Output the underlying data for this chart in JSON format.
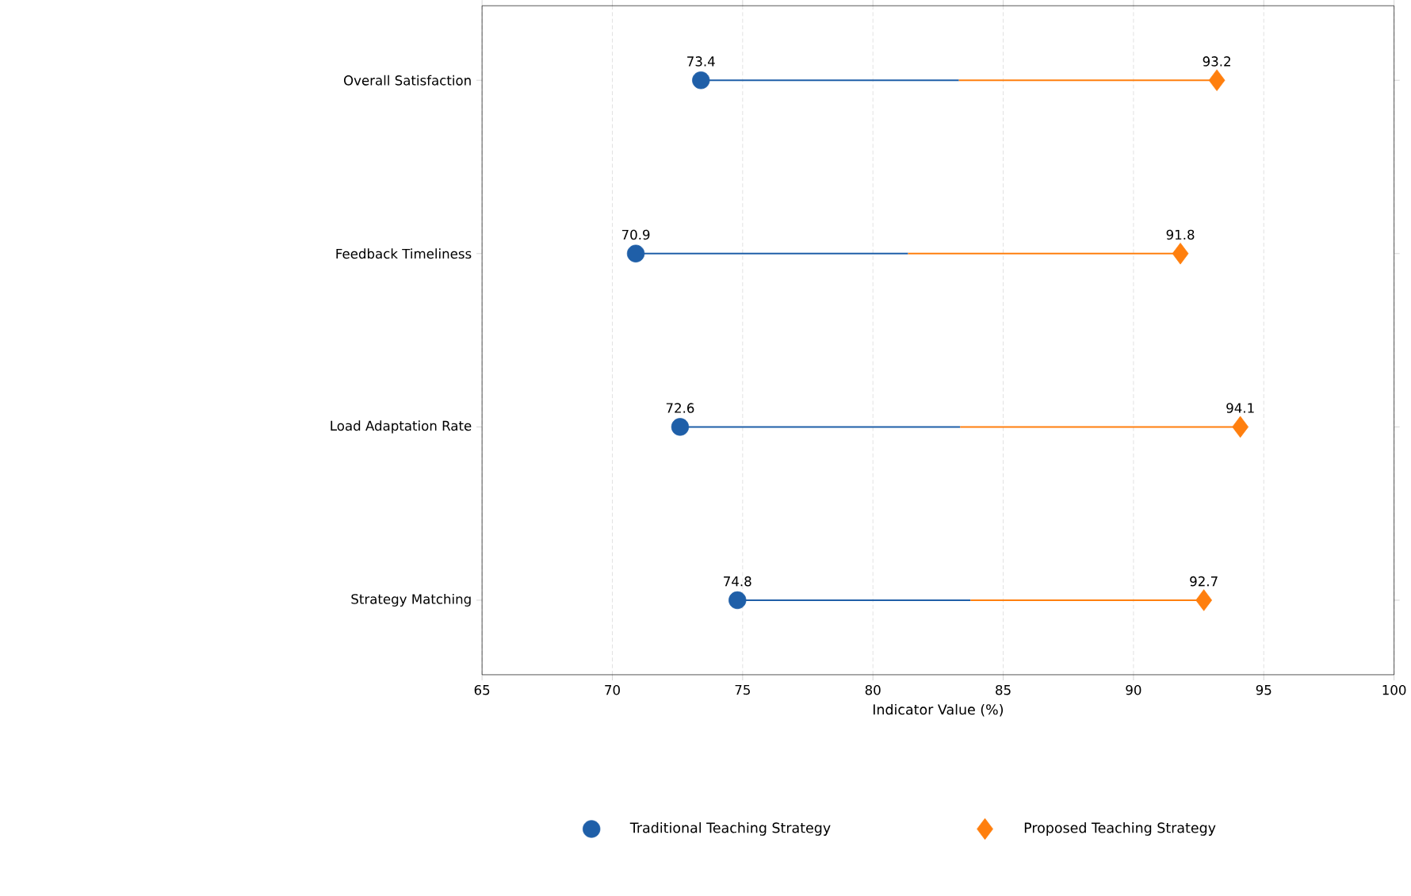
{
  "chart_data": {
    "type": "scatter",
    "orientation": "horizontal",
    "xlabel": "Indicator Value (%)",
    "categories": [
      "Overall Satisfaction",
      "Feedback Timeliness",
      "Load Adaptation Rate",
      "Strategy Matching"
    ],
    "series": [
      {
        "name": "Traditional Teaching Strategy",
        "color": "#1f5fa8",
        "marker": "circle",
        "values": [
          73.4,
          70.9,
          72.6,
          74.8
        ]
      },
      {
        "name": "Proposed Teaching Strategy",
        "color": "#ff7f0e",
        "marker": "diamond",
        "values": [
          93.2,
          91.8,
          94.1,
          92.7
        ]
      }
    ],
    "xlim": [
      65,
      100
    ],
    "xticks": [
      65,
      70,
      75,
      80,
      85,
      90,
      95,
      100
    ],
    "grid": "x",
    "legend": "bottom",
    "data_labels": true
  }
}
